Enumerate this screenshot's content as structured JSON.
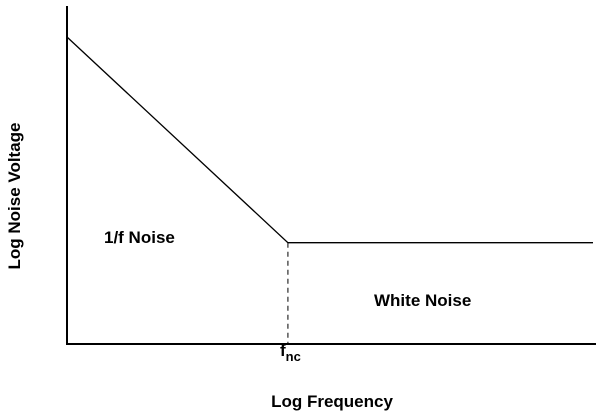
{
  "chart_data": {
    "type": "line",
    "xlabel": "Log Frequency",
    "ylabel": "Log Noise Voltage",
    "xscale": "log",
    "yscale": "log",
    "grid": false,
    "legend": "none",
    "x_ticks": [
      {
        "main": "f",
        "sub": "nc"
      }
    ],
    "annotations": {
      "flicker": "1/f Noise",
      "white": "White Noise"
    },
    "series": [
      {
        "points": [
          {
            "x": 0.0,
            "y": 1.0
          },
          {
            "x": 0.42,
            "y": 0.33
          },
          {
            "x": 1.0,
            "y": 0.33
          }
        ]
      }
    ],
    "corner_marker": {
      "x": 0.42,
      "style": "dashed-vertical"
    },
    "colors": {
      "line": "#000000",
      "axis": "#000000"
    }
  }
}
